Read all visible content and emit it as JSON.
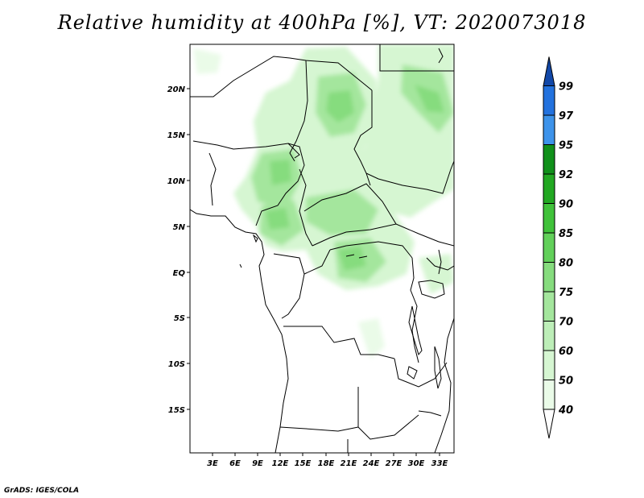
{
  "title": "Relative humidity at 400hPa [%], VT: 2020073018",
  "credit": "GrADS: IGES/COLA",
  "map": {
    "lat_ticks": [
      "20N",
      "15N",
      "10N",
      "5N",
      "EQ",
      "5S",
      "10S",
      "15S"
    ],
    "lon_ticks": [
      "3E",
      "6E",
      "9E",
      "12E",
      "15E",
      "18E",
      "21E",
      "24E",
      "27E",
      "30E",
      "33E"
    ]
  },
  "colorbar": {
    "levels": [
      "40",
      "50",
      "60",
      "70",
      "75",
      "80",
      "85",
      "90",
      "92",
      "95",
      "97",
      "99"
    ],
    "colors": [
      "#eafbe8",
      "#d6f6d2",
      "#bdeeb8",
      "#a4e69d",
      "#86dc7e",
      "#62d05a",
      "#40c23a",
      "#22a822",
      "#10901a",
      "#3d93ea",
      "#2372de",
      "#1756c0"
    ],
    "under_color": "#ffffff",
    "over_color": "#1248a8"
  }
}
